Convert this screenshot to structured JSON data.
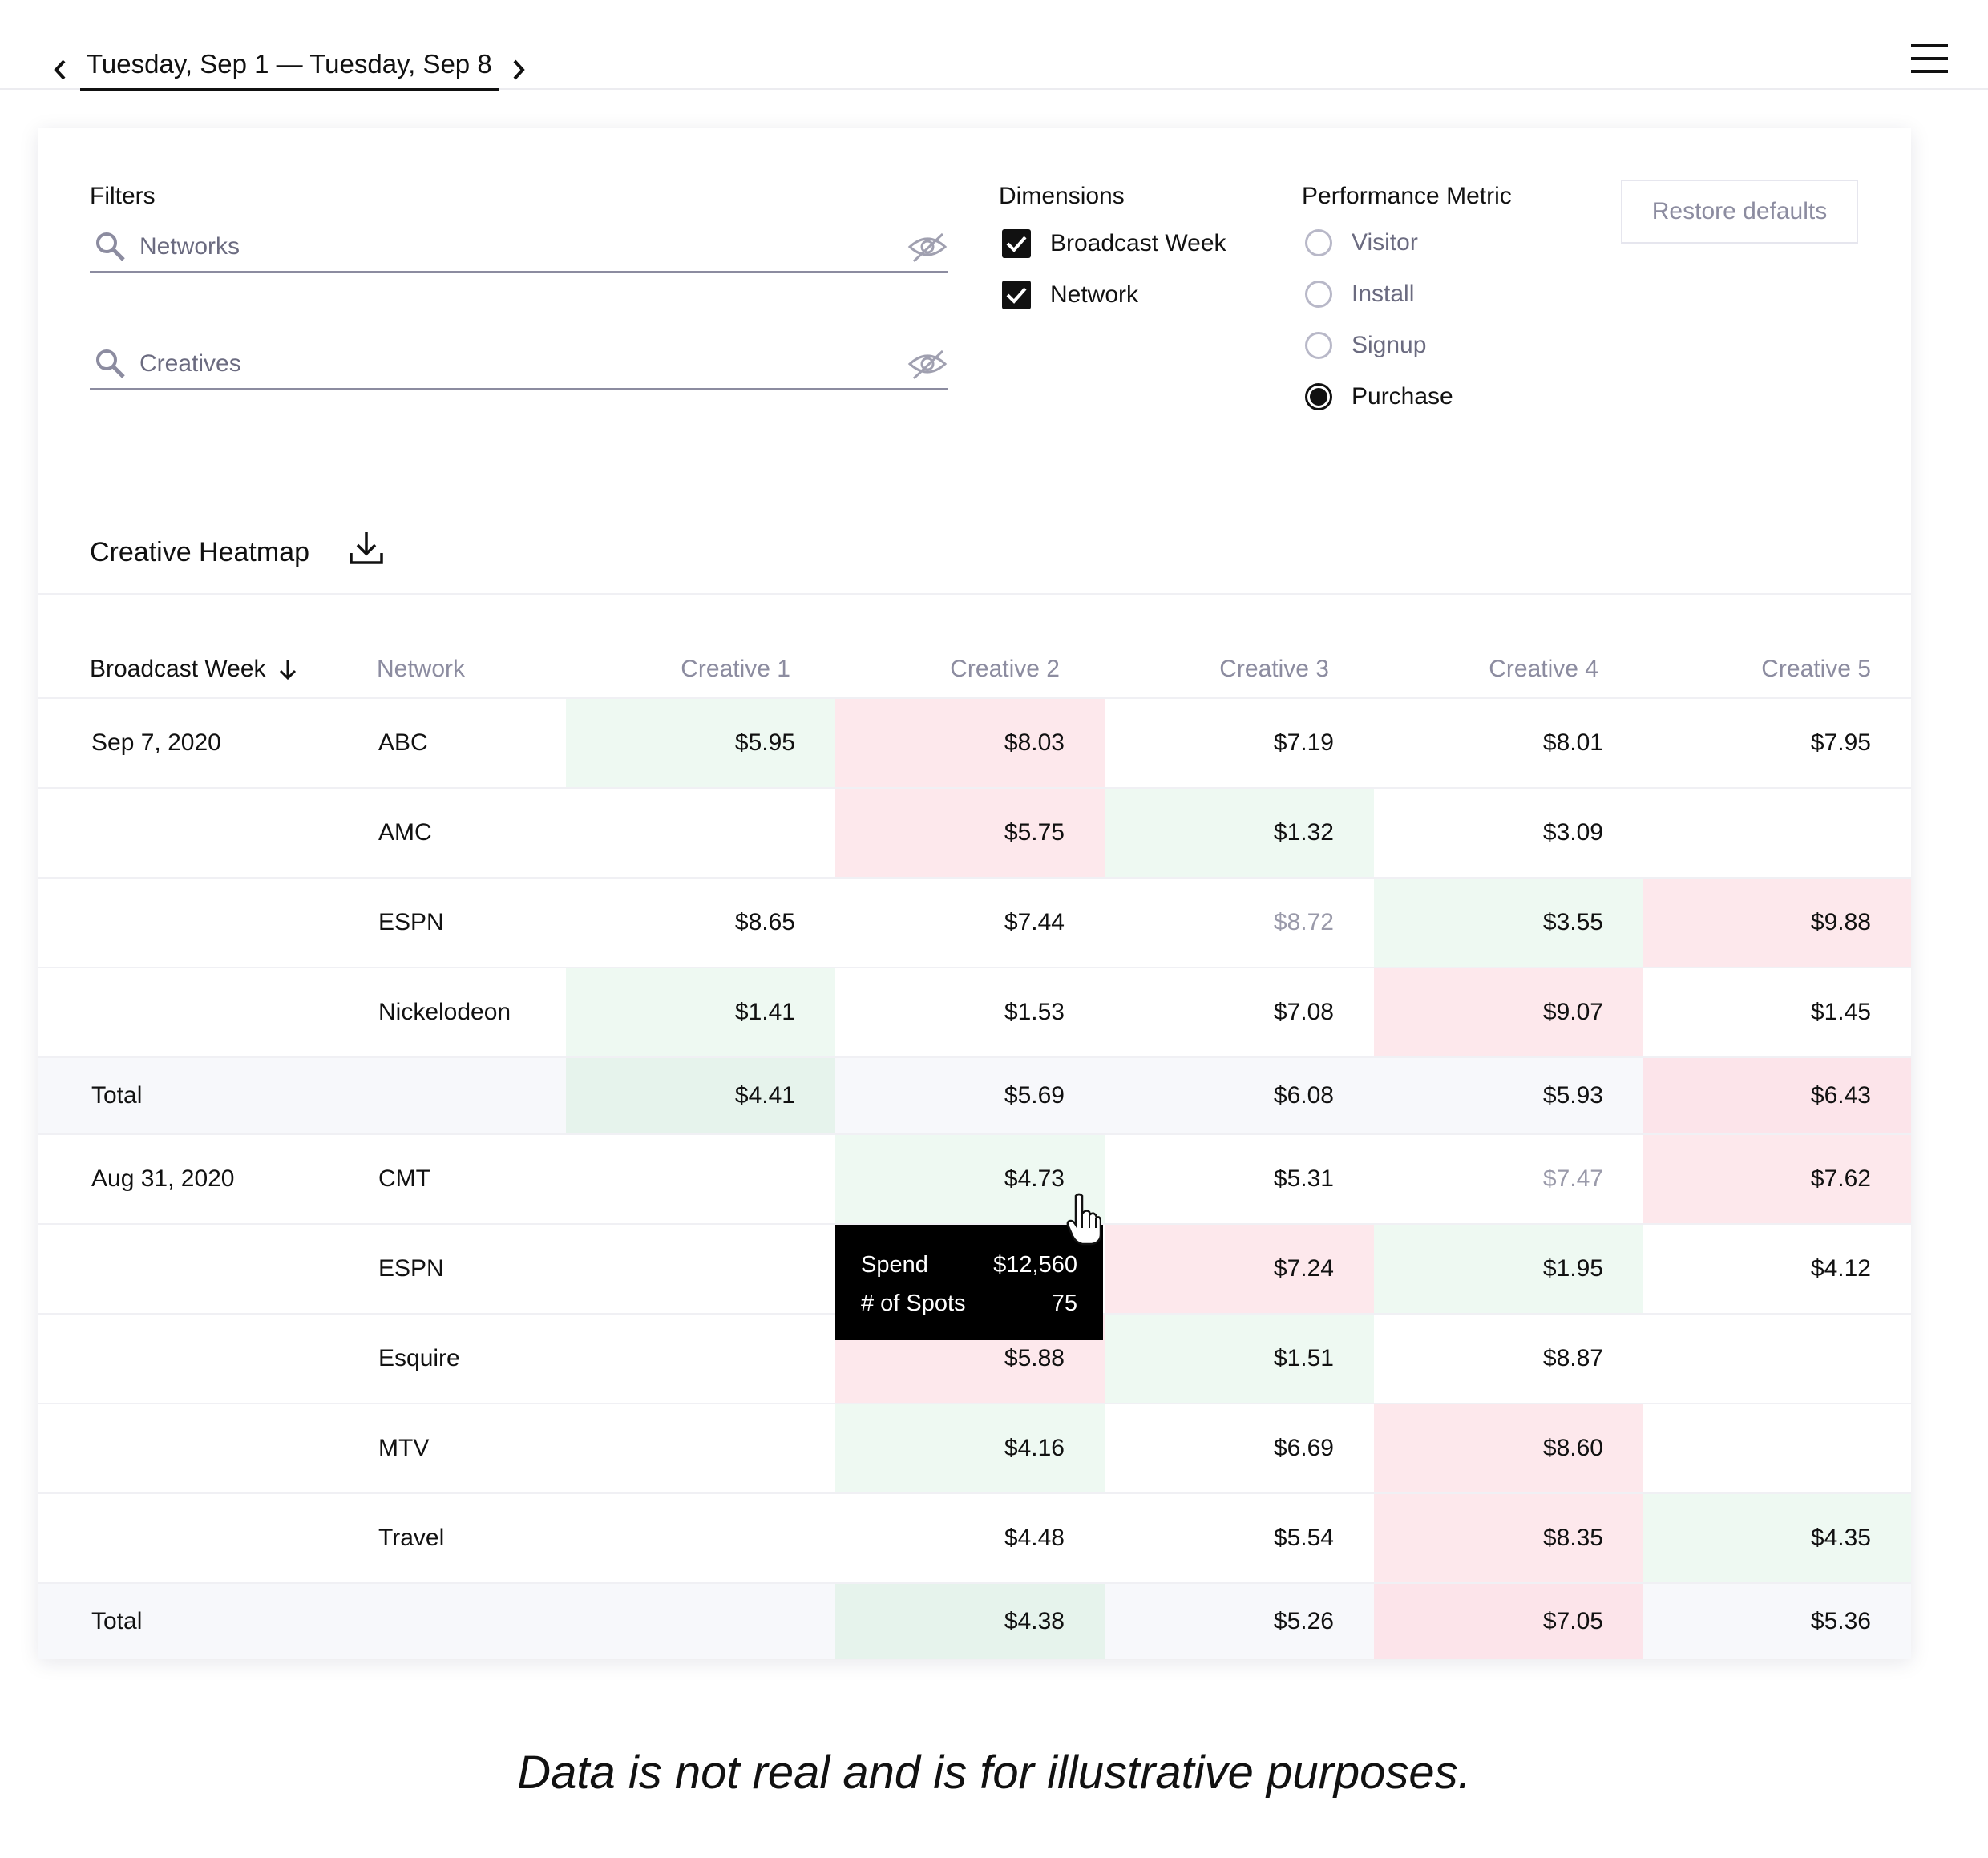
{
  "header": {
    "date_range": "Tuesday, Sep 1 — Tuesday, Sep 8",
    "prev_icon": "chevron-left-icon",
    "next_icon": "chevron-right-icon",
    "menu_icon": "hamburger-menu-icon"
  },
  "filters": {
    "label": "Filters",
    "networks_placeholder": "Networks",
    "creatives_placeholder": "Creatives"
  },
  "dimensions": {
    "label": "Dimensions",
    "options": [
      {
        "label": "Broadcast Week",
        "checked": true
      },
      {
        "label": "Network",
        "checked": true
      }
    ]
  },
  "performance_metric": {
    "label": "Performance Metric",
    "options": [
      {
        "label": "Visitor",
        "selected": false
      },
      {
        "label": "Install",
        "selected": false
      },
      {
        "label": "Signup",
        "selected": false
      },
      {
        "label": "Purchase",
        "selected": true
      }
    ]
  },
  "restore_button": "Restore defaults",
  "heatmap": {
    "title": "Creative Heatmap",
    "columns": [
      "Broadcast Week",
      "Network",
      "Creative 1",
      "Creative 2",
      "Creative 3",
      "Creative 4",
      "Creative 5"
    ],
    "rows": [
      {
        "week": "Sep 7, 2020",
        "network": "ABC",
        "values": [
          "$5.95",
          "$8.03",
          "$7.19",
          "$8.01",
          "$7.95"
        ],
        "tones": [
          "good",
          "bad",
          "",
          "",
          ""
        ],
        "total": false
      },
      {
        "week": "",
        "network": "AMC",
        "values": [
          "",
          "$5.75",
          "$1.32",
          "$3.09",
          ""
        ],
        "tones": [
          "",
          "bad",
          "good",
          "",
          ""
        ],
        "total": false
      },
      {
        "week": "",
        "network": "ESPN",
        "values": [
          "$8.65",
          "$7.44",
          "$8.72",
          "$3.55",
          "$9.88"
        ],
        "tones": [
          "",
          "",
          "muted",
          "good",
          "bad"
        ],
        "total": false
      },
      {
        "week": "",
        "network": "Nickelodeon",
        "values": [
          "$1.41",
          "$1.53",
          "$7.08",
          "$9.07",
          "$1.45"
        ],
        "tones": [
          "good",
          "",
          "",
          "bad",
          ""
        ],
        "total": false
      },
      {
        "week": "Total",
        "network": "",
        "values": [
          "$4.41",
          "$5.69",
          "$6.08",
          "$5.93",
          "$6.43"
        ],
        "tones": [
          "good",
          "",
          "",
          "",
          "bad"
        ],
        "total": true
      },
      {
        "week": "Aug 31, 2020",
        "network": "CMT",
        "values": [
          "",
          "$4.73",
          "$5.31",
          "$7.47",
          "$7.62"
        ],
        "tones": [
          "",
          "good",
          "",
          "muted",
          "bad"
        ],
        "total": false
      },
      {
        "week": "",
        "network": "ESPN",
        "values": [
          "",
          "",
          "$7.24",
          "$1.95",
          "$4.12"
        ],
        "tones": [
          "",
          "",
          "bad",
          "good",
          ""
        ],
        "total": false
      },
      {
        "week": "",
        "network": "Esquire",
        "values": [
          "",
          "$5.88",
          "$1.51",
          "$8.87",
          ""
        ],
        "tones": [
          "",
          "bad",
          "good",
          "",
          ""
        ],
        "total": false
      },
      {
        "week": "",
        "network": "MTV",
        "values": [
          "",
          "$4.16",
          "$6.69",
          "$8.60",
          ""
        ],
        "tones": [
          "",
          "good",
          "",
          "bad",
          ""
        ],
        "total": false
      },
      {
        "week": "",
        "network": "Travel",
        "values": [
          "",
          "$4.48",
          "$5.54",
          "$8.35",
          "$4.35"
        ],
        "tones": [
          "",
          "",
          "",
          "bad",
          "good"
        ],
        "total": false
      },
      {
        "week": "Total",
        "network": "",
        "values": [
          "",
          "$4.38",
          "$5.26",
          "$7.05",
          "$5.36"
        ],
        "tones": [
          "",
          "good",
          "",
          "bad",
          ""
        ],
        "total": true
      }
    ]
  },
  "tooltip": {
    "spend_label": "Spend",
    "spend_value": "$12,560",
    "spots_label": "# of Spots",
    "spots_value": "75"
  },
  "footnote": "Data is not real and is for illustrative purposes.",
  "colors": {
    "good": "#eef9f2",
    "bad": "#fde8ec",
    "total_row": "#f7f8fb",
    "text": "#111111",
    "muted": "#8c8ca0"
  }
}
